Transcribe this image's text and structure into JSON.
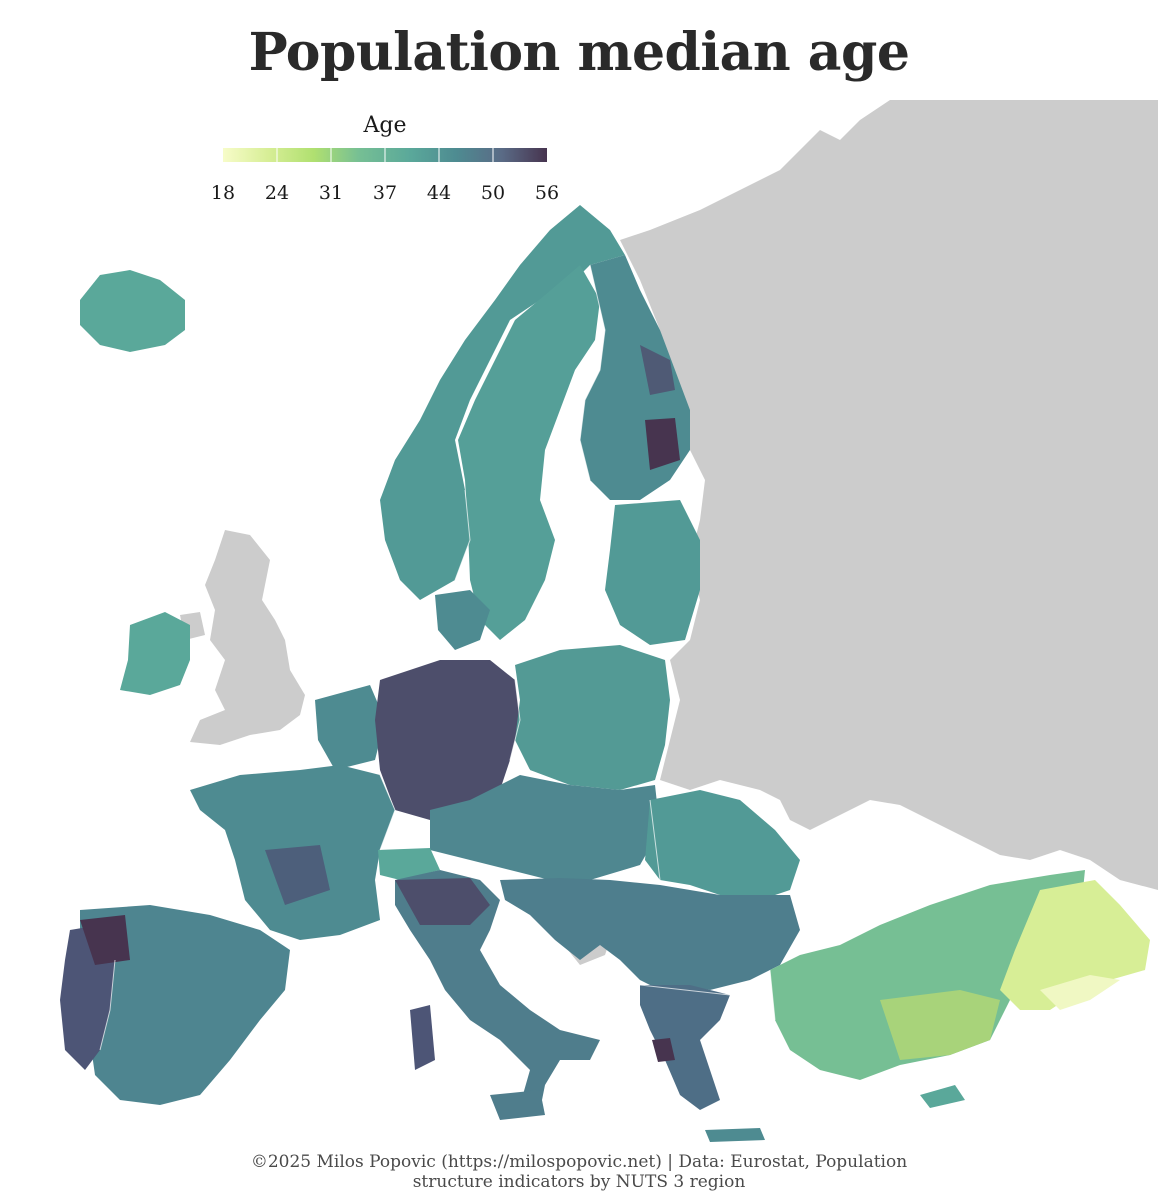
{
  "title": "Population median age",
  "legend": {
    "title": "Age",
    "ticks": [
      "18",
      "24",
      "31",
      "37",
      "44",
      "50",
      "56"
    ],
    "colors": [
      "#f7fcc9",
      "#d7ee96",
      "#b0e070",
      "#76bf94",
      "#5aa89a",
      "#4e8b91",
      "#5a6b86",
      "#47344f"
    ]
  },
  "credit": {
    "line1": "©2025 Milos Popovic (https://milospopovic.net) | Data: Eurostat, Population",
    "line2": "structure indicators by NUTS 3 region"
  },
  "colors": {
    "nodata": "#cccccc",
    "sea": "#ffffff",
    "border": "#eeeeee"
  },
  "map_regions": [
    {
      "name": "Russia & East",
      "category": "nodata"
    },
    {
      "name": "Great Britain",
      "category": "nodata"
    },
    {
      "name": "Bosnia and Herzegovina",
      "category": "nodata"
    },
    {
      "name": "Iceland",
      "category": "37-44"
    },
    {
      "name": "Norway",
      "category": "37-44"
    },
    {
      "name": "Sweden",
      "category": "37-44"
    },
    {
      "name": "Finland",
      "category": "44-50"
    },
    {
      "name": "Ireland",
      "category": "37-44"
    },
    {
      "name": "Germany",
      "category": "50-56"
    },
    {
      "name": "Poland",
      "category": "37-44"
    },
    {
      "name": "France",
      "category": "44-50"
    },
    {
      "name": "Spain",
      "category": "44-50"
    },
    {
      "name": "Portugal",
      "category": "50-56"
    },
    {
      "name": "Italy",
      "category": "44-50"
    },
    {
      "name": "Greece",
      "category": "44-50"
    },
    {
      "name": "Romania",
      "category": "37-44"
    },
    {
      "name": "Turkey (west)",
      "category": "31-37"
    },
    {
      "name": "Turkey (east)",
      "category": "18-24"
    }
  ]
}
